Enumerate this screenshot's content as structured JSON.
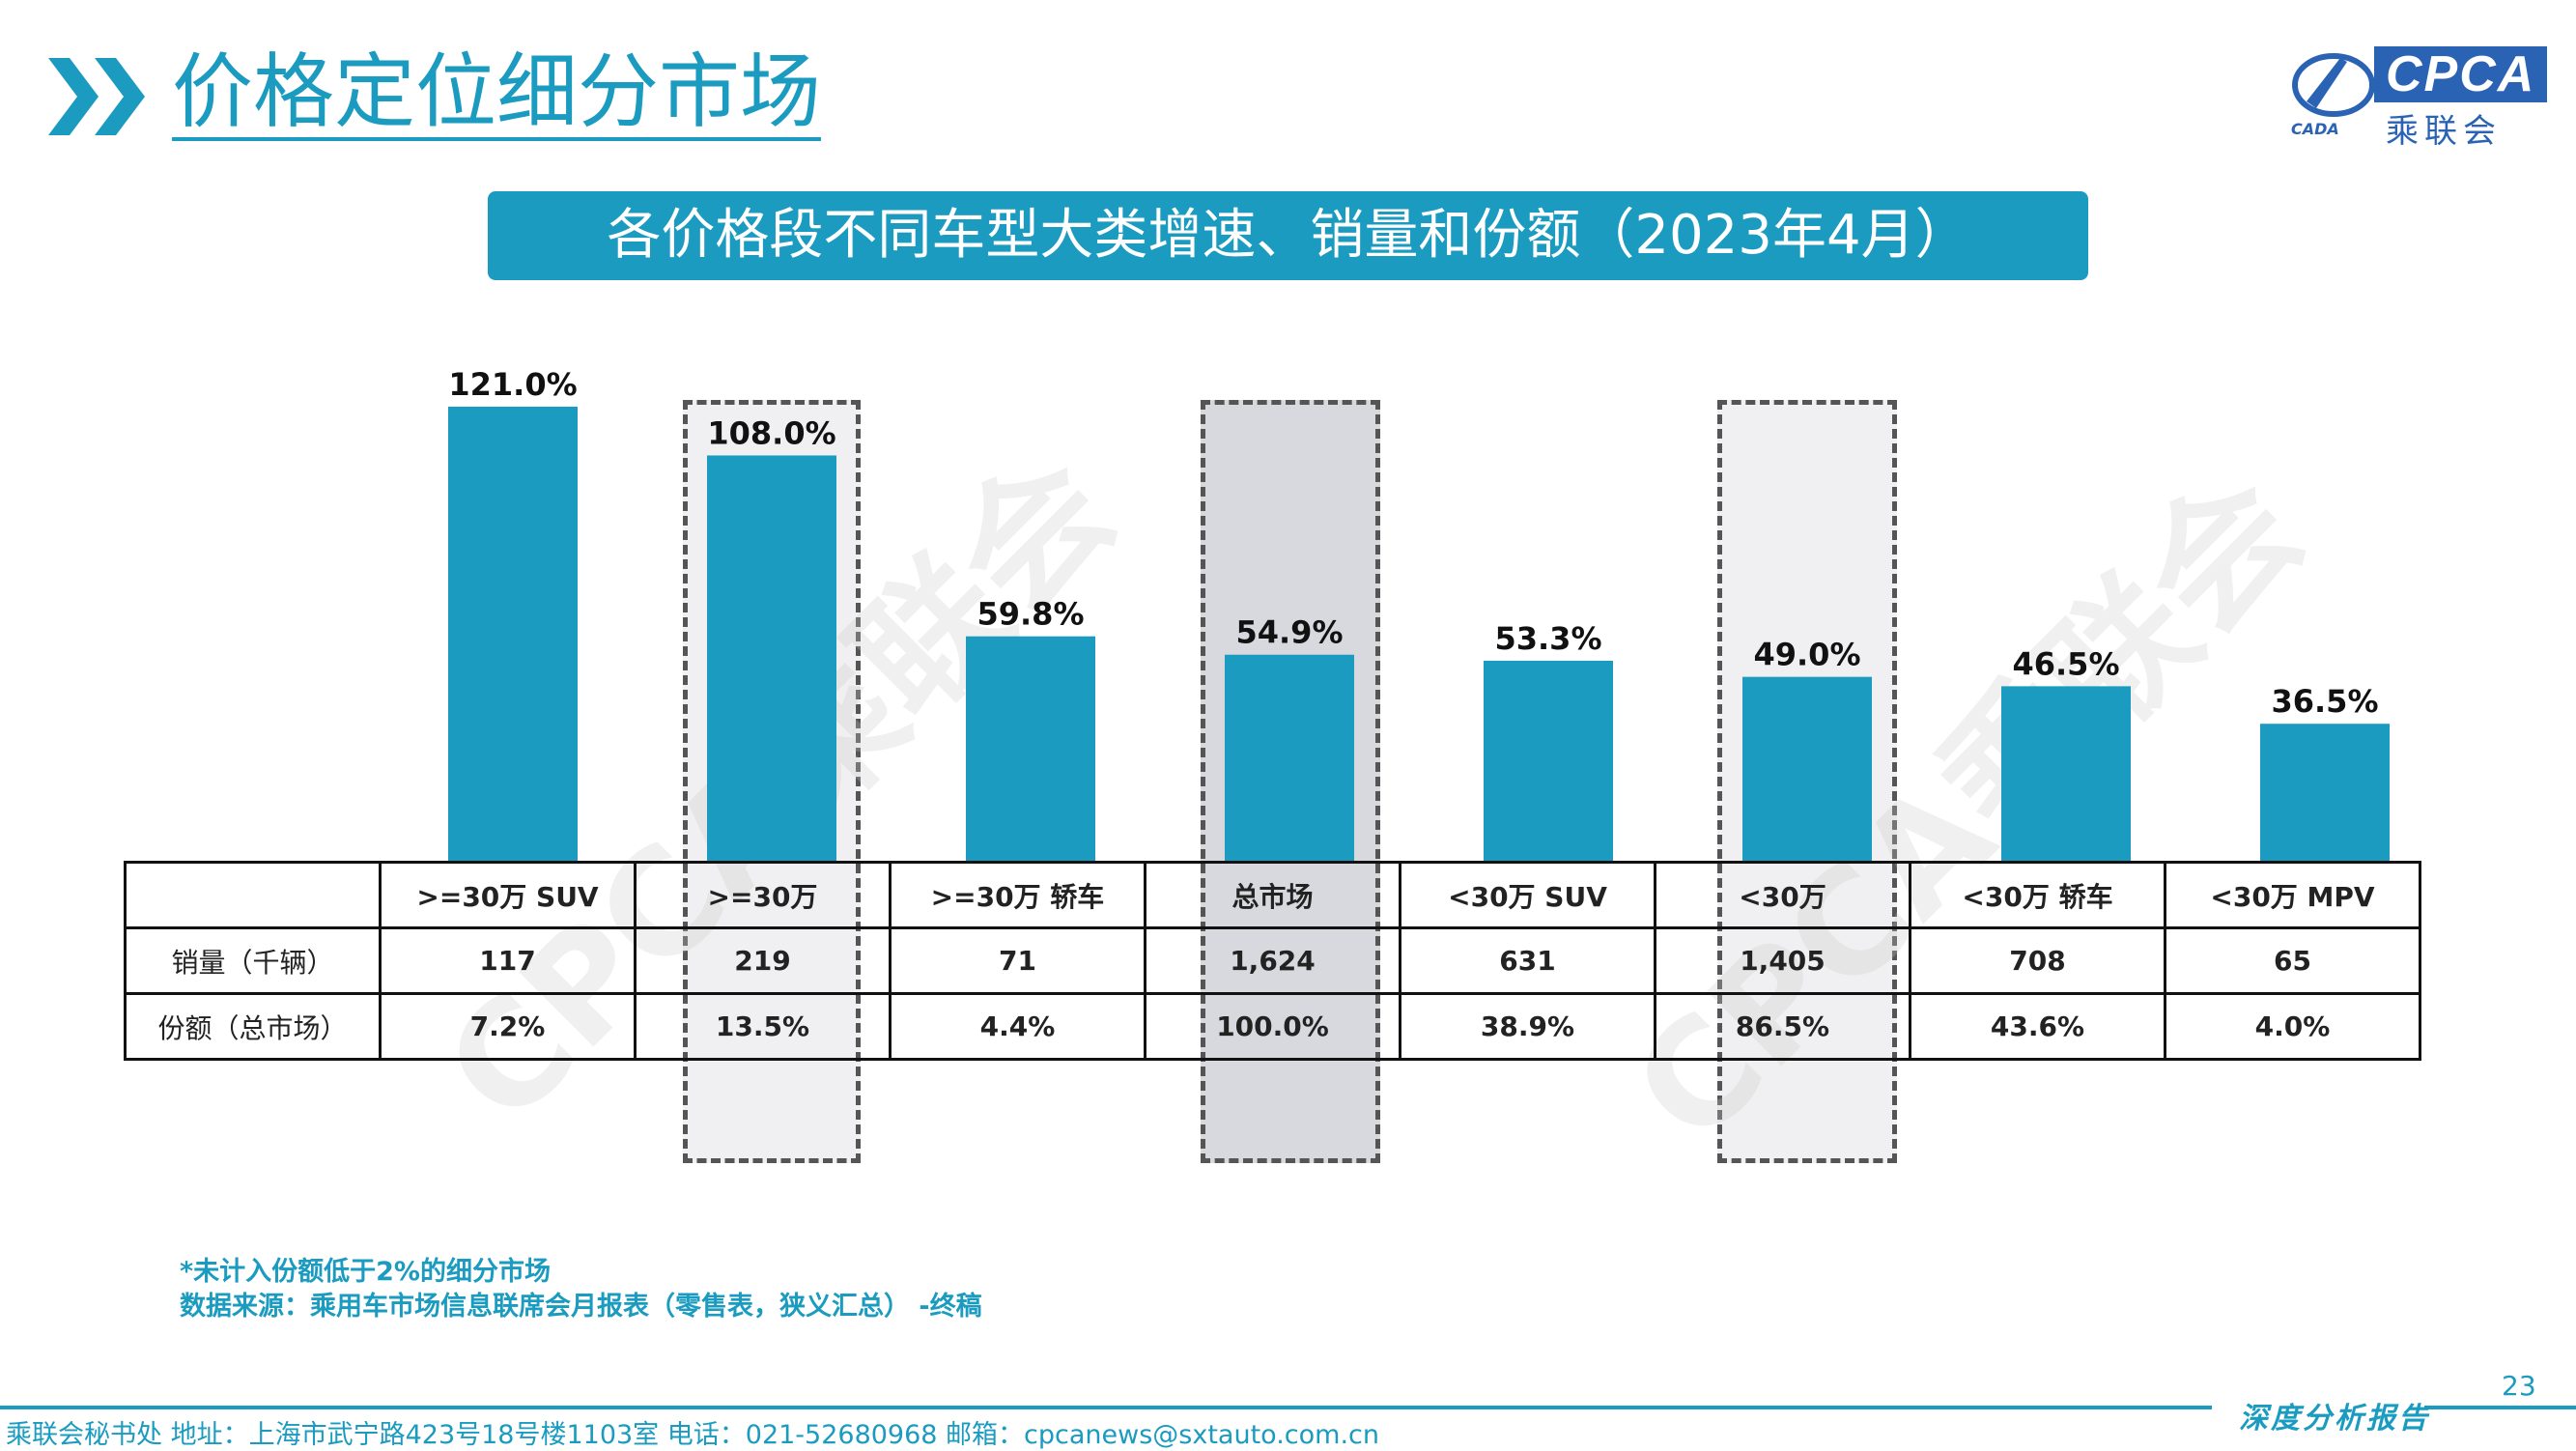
{
  "header": {
    "title": "价格定位细分市场",
    "logo_text": "CPCA",
    "logo_cn": "乘联会",
    "logo_small": "CADA"
  },
  "subtitle": "各价格段不同车型大类增速、销量和份额（2023年4月）",
  "watermark": "CPCA乘联会",
  "colors": {
    "accent": "#1a9bbf",
    "bar": "#1a9bbf",
    "highlight_dark": "#d8d9de",
    "highlight_light": "#f0f0f2"
  },
  "chart_data": {
    "type": "bar",
    "categories": [
      ">=30万 SUV",
      ">=30万",
      ">=30万 轿车",
      "总市场",
      "<30万 SUV",
      "<30万",
      "<30万 轿车",
      "<30万 MPV"
    ],
    "values": [
      121.0,
      108.0,
      59.8,
      54.9,
      53.3,
      49.0,
      46.5,
      36.5
    ],
    "value_labels": [
      "121.0%",
      "108.0%",
      "59.8%",
      "54.9%",
      "53.3%",
      "49.0%",
      "46.5%",
      "36.5%"
    ],
    "unit": "%",
    "ylim": [
      0,
      130
    ],
    "grid": false,
    "highlighted_categories": [
      ">=30万",
      "总市场",
      "<30万"
    ]
  },
  "table": {
    "rows": [
      {
        "label": "销量（千辆）",
        "values": [
          "117",
          "219",
          "71",
          "1,624",
          "631",
          "1,405",
          "708",
          "65"
        ]
      },
      {
        "label": "份额（总市场）",
        "values": [
          "7.2%",
          "13.5%",
          "4.4%",
          "100.0%",
          "38.9%",
          "86.5%",
          "43.6%",
          "4.0%"
        ]
      }
    ]
  },
  "footnotes": {
    "note": "*未计入份额低于2%的细分市场",
    "source": "数据来源：乘用车市场信息联席会月报表（零售表，狭义汇总） -终稿"
  },
  "footer": {
    "page_number": "23",
    "report_label": "深度分析报告",
    "contact": "乘联会秘书处   地址：上海市武宁路423号18号楼1103室   电话：021-52680968    邮箱：cpcanews@sxtauto.com.cn"
  }
}
